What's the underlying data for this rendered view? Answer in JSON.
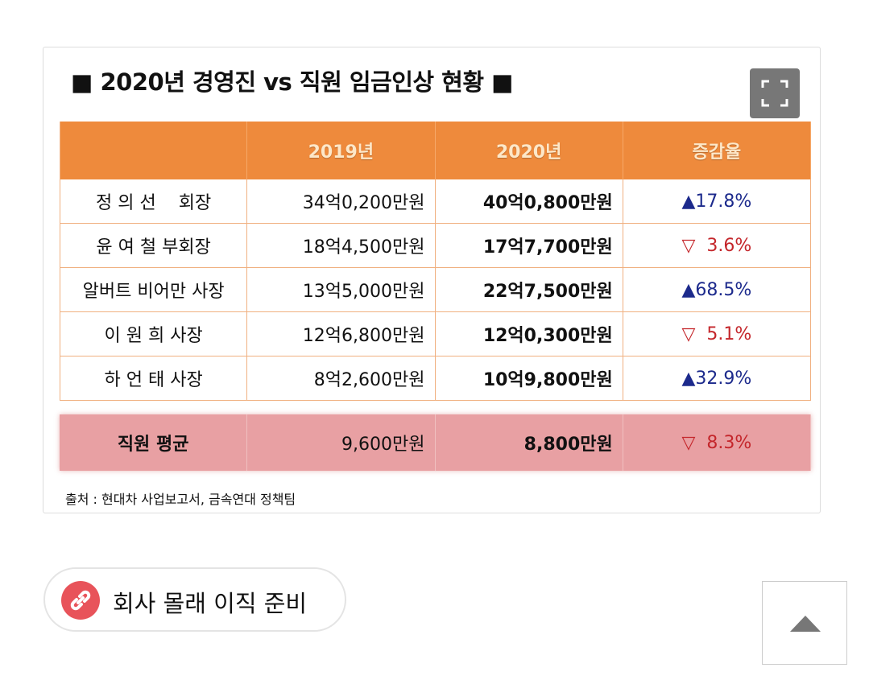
{
  "title": "■ 2020년 경영진 vs 직원 임금인상 현황 ■",
  "table": {
    "header": [
      "2019년",
      "2020년",
      "증감율"
    ],
    "rows": [
      [
        "정 의 선    회장",
        "34억0,200만원",
        "40억0,800만원",
        "▲17.8%"
      ],
      [
        "윤 여 철 부회장",
        "18억4,500만원",
        "17억7,700만원",
        "▽  3.6%"
      ],
      [
        "알버트 비어만 사장",
        "13억5,000만원",
        "22억7,500만원",
        "▲68.5%"
      ],
      [
        "이 원 희 사장",
        "12억6,800만원",
        "12억0,300만원",
        "▽  5.1%"
      ],
      [
        "하 언 태 사장",
        "8억2,600만원",
        "10억9,800만원",
        "▲32.9%"
      ]
    ],
    "average": [
      "직원 평균",
      "9,600만원",
      "8,800만원",
      "▽  8.3%"
    ]
  },
  "source": "출처 : 현대차 사업보고서, 금속연대 정책팀",
  "link_text": "회사 몰래 이직 준비"
}
